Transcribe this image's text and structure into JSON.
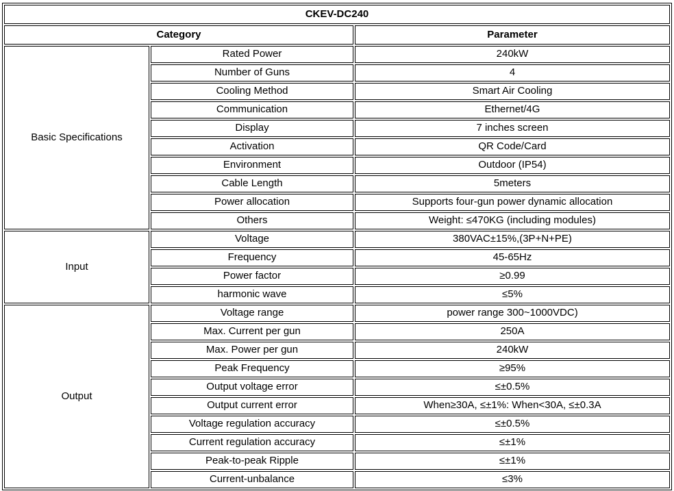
{
  "colors": {
    "border": "#000000",
    "text": "#000000",
    "background": "#ffffff"
  },
  "table": {
    "title": "CKEV-DC240",
    "headers": {
      "category": "Category",
      "parameter": "Parameter"
    },
    "sections": [
      {
        "category": "Basic Specifications",
        "rows": [
          {
            "item": "Rated Power",
            "parameter": "240kW"
          },
          {
            "item": "Number of Guns",
            "parameter": "4"
          },
          {
            "item": "Cooling Method",
            "parameter": "Smart Air Cooling"
          },
          {
            "item": "Communication",
            "parameter": "Ethernet/4G"
          },
          {
            "item": "Display",
            "parameter": "7 inches screen"
          },
          {
            "item": "Activation",
            "parameter": "QR Code/Card"
          },
          {
            "item": "Environment",
            "parameter": "Outdoor (IP54)"
          },
          {
            "item": "Cable Length",
            "parameter": "5meters"
          },
          {
            "item": "Power allocation",
            "parameter": "Supports four-gun power dynamic allocation"
          },
          {
            "item": "Others",
            "parameter": "Weight: ≤470KG (including modules)"
          }
        ]
      },
      {
        "category": "Input",
        "rows": [
          {
            "item": "Voltage",
            "parameter": "380VAC±15%,(3P+N+PE)"
          },
          {
            "item": "Frequency",
            "parameter": "45-65Hz"
          },
          {
            "item": "Power factor",
            "parameter": "≥0.99"
          },
          {
            "item": "harmonic wave",
            "parameter": "≤5%"
          }
        ]
      },
      {
        "category": "Output",
        "rows": [
          {
            "item": "Voltage range",
            "parameter": "power range 300~1000VDC)"
          },
          {
            "item": "Max. Current per gun",
            "parameter": "250A"
          },
          {
            "item": "Max. Power per gun",
            "parameter": "240kW"
          },
          {
            "item": "Peak Frequency",
            "parameter": "≥95%"
          },
          {
            "item": "Output voltage error",
            "parameter": "≤±0.5%"
          },
          {
            "item": "Output current error",
            "parameter": "When≥30A, ≤±1%: When<30A, ≤±0.3A"
          },
          {
            "item": "Voltage regulation accuracy",
            "parameter": "≤±0.5%"
          },
          {
            "item": "Current regulation accuracy",
            "parameter": "≤±1%"
          },
          {
            "item": "Peak-to-peak Ripple",
            "parameter": "≤±1%"
          },
          {
            "item": "Current-unbalance",
            "parameter": "≤3%"
          }
        ]
      }
    ]
  }
}
